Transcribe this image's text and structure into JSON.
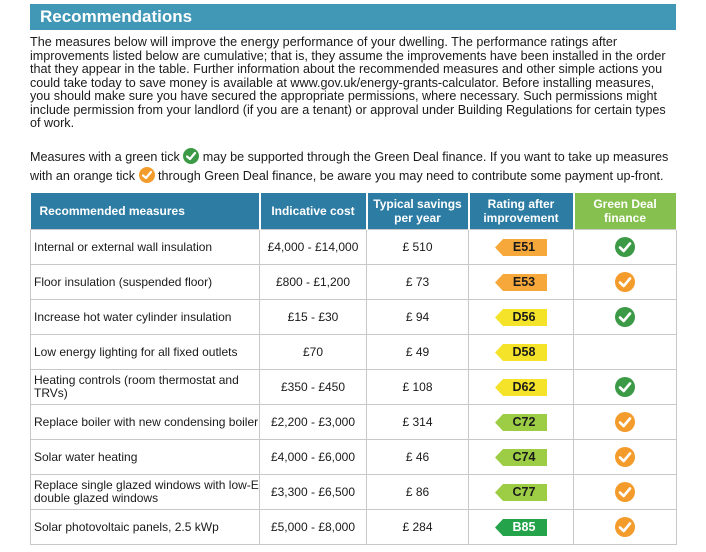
{
  "header": {
    "title": "Recommendations"
  },
  "intro": "The measures below will improve the energy performance of your dwelling. The performance ratings after improvements listed below are cumulative; that is, they assume the improvements have been installed in the order that they appear in the table. Further information about the recommended measures and other simple actions you could take today to save money is available at www.gov.uk/energy-grants-calculator. Before installing measures, you should make sure you have secured the appropriate permissions, where necessary. Such permissions might include permission from your landlord (if you are a tenant) or approval under Building Regulations for certain types of work.",
  "legend": {
    "line1_before": "Measures with a green tick",
    "line1_after": "may be supported through the Green Deal finance. If you want to take up measures",
    "line2_before": "with an orange tick",
    "line2_after": "through Green Deal finance, be aware you may need to contribute some payment up-front."
  },
  "table": {
    "headers": {
      "measures": "Recommended measures",
      "cost": "Indicative cost",
      "savings_1": "Typical savings",
      "savings_2": "per year",
      "rating_1": "Rating after",
      "rating_2": "improvement",
      "gd_1": "Green Deal",
      "gd_2": "finance"
    },
    "rows": [
      {
        "measure": "Internal or external wall insulation",
        "cost": "£4,000 - £14,000",
        "saving": "£ 510",
        "rating": "E51",
        "band": "E",
        "tick": "green"
      },
      {
        "measure": "Floor insulation (suspended floor)",
        "cost": "£800 - £1,200",
        "saving": "£ 73",
        "rating": "E53",
        "band": "E",
        "tick": "orange"
      },
      {
        "measure": "Increase hot water cylinder insulation",
        "cost": "£15 - £30",
        "saving": "£ 94",
        "rating": "D56",
        "band": "D",
        "tick": "green"
      },
      {
        "measure": "Low energy lighting for all fixed outlets",
        "cost": "£70",
        "saving": "£ 49",
        "rating": "D58",
        "band": "D",
        "tick": "none"
      },
      {
        "measure": "Heating controls (room thermostat and TRVs)",
        "cost": "£350 - £450",
        "saving": "£ 108",
        "rating": "D62",
        "band": "D",
        "tick": "green"
      },
      {
        "measure": "Replace boiler with new condensing boiler",
        "cost": "£2,200 - £3,000",
        "saving": "£ 314",
        "rating": "C72",
        "band": "C",
        "tick": "orange"
      },
      {
        "measure": "Solar water heating",
        "cost": "£4,000 - £6,000",
        "saving": "£ 46",
        "rating": "C74",
        "band": "C",
        "tick": "orange"
      },
      {
        "measure": "Replace single glazed windows with low-E double glazed windows",
        "cost": "£3,300 - £6,500",
        "saving": "£ 86",
        "rating": "C77",
        "band": "C",
        "tick": "orange"
      },
      {
        "measure": "Solar photovoltaic panels, 2.5 kWp",
        "cost": "£5,000 - £8,000",
        "saving": "£ 284",
        "rating": "B85",
        "band": "B",
        "tick": "orange"
      }
    ]
  },
  "colors": {
    "header_bar": "#4197b6",
    "table_header_blue": "#2d7ca3",
    "table_header_green": "#86c04e",
    "tick_green": "#3c9a46",
    "tick_orange": "#f39c2b",
    "band_E": "#f6a83a",
    "band_D": "#f5e32a",
    "band_C": "#9ccd45",
    "band_B": "#25a34a"
  }
}
